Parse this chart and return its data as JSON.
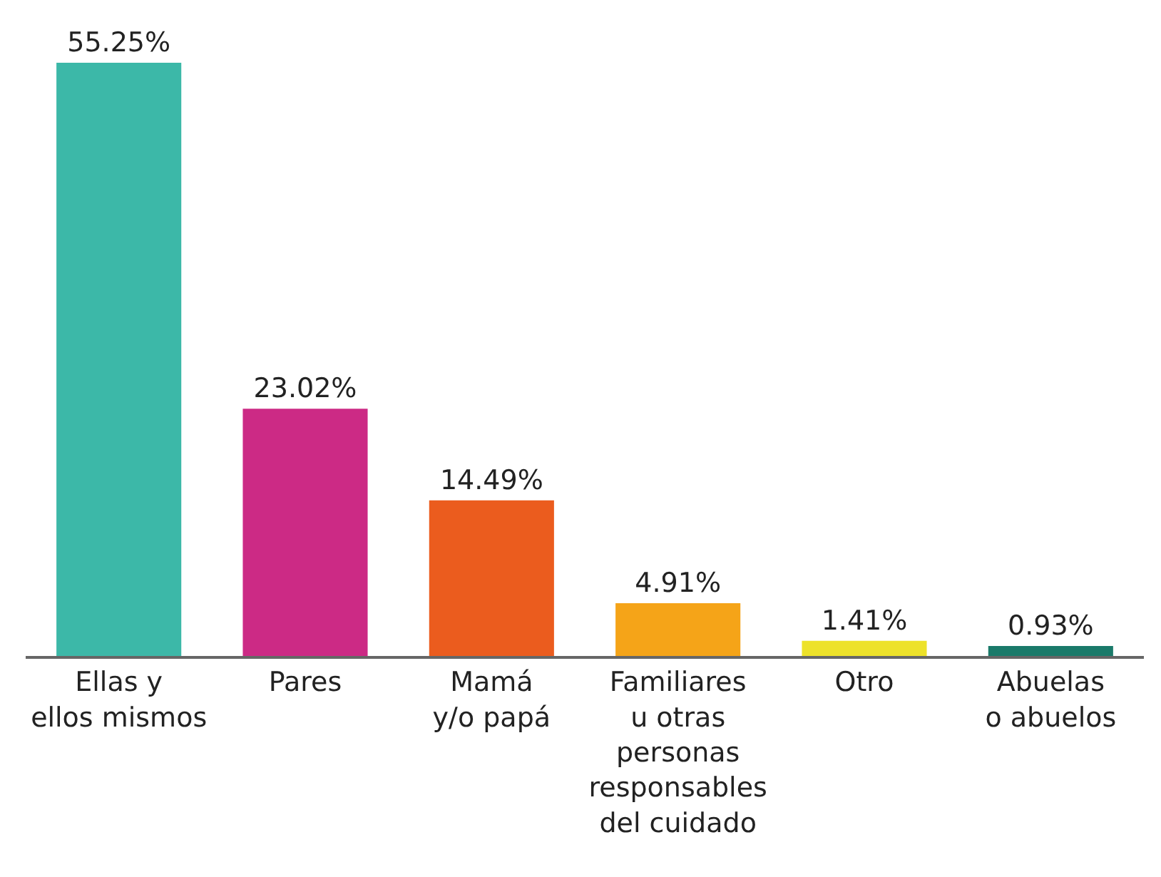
{
  "chart_data": {
    "type": "bar",
    "categories": [
      "Ellas y\nellos mismos",
      "Pares",
      "Mamá\ny/o papá",
      "Familiares\nu otras\npersonas\nresponsables\ndel cuidado",
      "Otro",
      "Abuelas\no abuelos"
    ],
    "values": [
      55.25,
      23.02,
      14.49,
      4.91,
      1.41,
      0.93
    ],
    "colors": [
      "#3cb8a8",
      "#cc2a85",
      "#eb5c1e",
      "#f5a418",
      "#ede22a",
      "#1a7a6a"
    ],
    "value_labels": [
      "55.25%",
      "23.02%",
      "14.49%",
      "4.91%",
      "1.41%",
      "0.93%"
    ],
    "ylim": [
      0,
      55.25
    ]
  }
}
